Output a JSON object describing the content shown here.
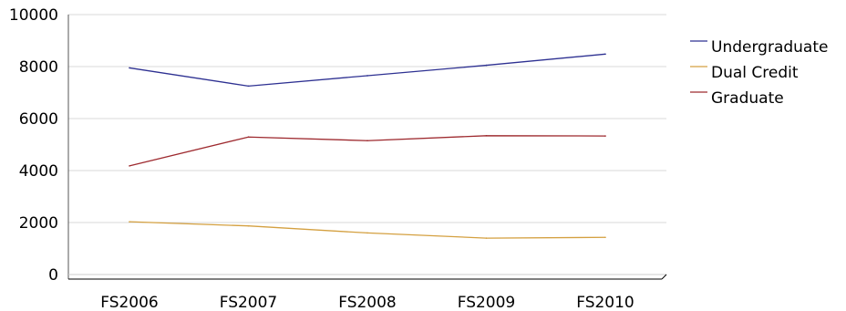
{
  "chart_data": {
    "type": "line",
    "title": "",
    "xlabel": "",
    "ylabel": "",
    "categories": [
      "FS2006",
      "FS2007",
      "FS2008",
      "FS2009",
      "FS2010"
    ],
    "ylim": [
      0,
      10000
    ],
    "yticks": [
      0,
      2000,
      4000,
      6000,
      8000,
      10000
    ],
    "grid": true,
    "legend_position": "right",
    "series": [
      {
        "name": "Undergraduate",
        "color": "#2e3192",
        "values": [
          7950,
          7250,
          7650,
          8050,
          8480
        ]
      },
      {
        "name": "Dual Credit",
        "color": "#d4a040",
        "values": [
          2030,
          1870,
          1600,
          1400,
          1430
        ]
      },
      {
        "name": "Graduate",
        "color": "#9e2a2f",
        "values": [
          4180,
          5290,
          5150,
          5340,
          5330
        ]
      }
    ]
  }
}
